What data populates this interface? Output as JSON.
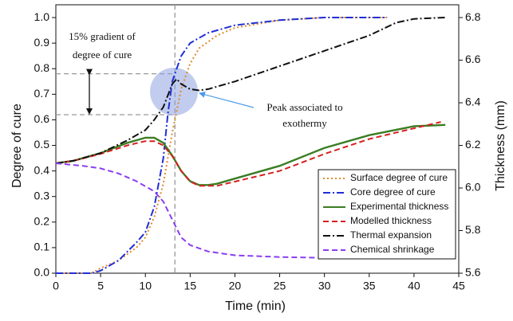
{
  "chart_data": {
    "type": "line",
    "xlabel": "Time (min)",
    "ylabel": "Degree of cure",
    "y2label": "Thickness (mm)",
    "xlim": [
      0,
      45
    ],
    "xticks": [
      0,
      5,
      10,
      15,
      20,
      25,
      30,
      35,
      40,
      45
    ],
    "ylim": [
      0,
      1.05
    ],
    "yticks": [
      {
        "value": 0,
        "label": "0.0"
      },
      0.1,
      0.2,
      0.3,
      0.4,
      0.5,
      0.6,
      0.7,
      0.8,
      0.9,
      {
        "value": 1,
        "label": "1.0"
      }
    ],
    "y2lim": [
      5.6,
      6.86
    ],
    "y2ticks": [
      5.6,
      5.8,
      {
        "value": 6,
        "label": "6.0"
      },
      6.2,
      6.4,
      6.6,
      6.8
    ],
    "legend": "lower right",
    "vline_x": 13.3,
    "hlines": [
      0.62,
      0.78
    ],
    "annotations": [
      {
        "lines": [
          "15% gradient of",
          "degree of cure"
        ]
      },
      {
        "lines": [
          "Peak associated to",
          "exothermy"
        ]
      }
    ],
    "series": [
      {
        "name": "Surface degree of cure",
        "color": "#e08a2a",
        "dash": "dot",
        "x": [
          0,
          4,
          5,
          7,
          9,
          10,
          11,
          12,
          13,
          14,
          15,
          16,
          18,
          20,
          25,
          30,
          37
        ],
        "values": [
          0,
          0,
          0.02,
          0.05,
          0.1,
          0.14,
          0.22,
          0.35,
          0.55,
          0.72,
          0.82,
          0.88,
          0.93,
          0.96,
          0.99,
          1,
          1
        ]
      },
      {
        "name": "Core degree of cure",
        "color": "#1f2fd6",
        "dash": "dashdot",
        "x": [
          0,
          4,
          5,
          7,
          9,
          10,
          11,
          12,
          12.5,
          13,
          14,
          15,
          17,
          20,
          25,
          30,
          37
        ],
        "values": [
          0,
          0,
          0.01,
          0.05,
          0.12,
          0.16,
          0.26,
          0.45,
          0.62,
          0.75,
          0.85,
          0.9,
          0.94,
          0.97,
          0.99,
          1,
          1
        ]
      },
      {
        "name": "Experimental thickness",
        "color": "#3a7d22",
        "dash": "solid",
        "axis": "y2",
        "x": [
          0,
          2,
          5,
          8,
          10,
          11,
          12,
          13,
          14,
          15,
          16,
          17,
          18,
          20,
          25,
          30,
          35,
          40,
          43.5
        ],
        "values": [
          6.116,
          6.128,
          6.164,
          6.212,
          6.236,
          6.236,
          6.212,
          6.152,
          6.08,
          6.032,
          6.014,
          6.014,
          6.02,
          6.044,
          6.104,
          6.188,
          6.248,
          6.29,
          6.296
        ]
      },
      {
        "name": "Modelled thickness",
        "color": "#d62020",
        "dash": "dash",
        "axis": "y2",
        "x": [
          0,
          2,
          5,
          8,
          10,
          11,
          12,
          13,
          14,
          15,
          16,
          17,
          18,
          20,
          25,
          30,
          35,
          40,
          43
        ],
        "values": [
          6.116,
          6.128,
          6.16,
          6.2,
          6.22,
          6.22,
          6.2,
          6.15,
          6.08,
          6.03,
          6.01,
          6.01,
          6.01,
          6.03,
          6.08,
          6.16,
          6.23,
          6.28,
          6.31
        ]
      },
      {
        "name": "Thermal expansion",
        "color": "#111111",
        "dash": "dashdot",
        "axis": "y2",
        "x": [
          0,
          2,
          5,
          8,
          10,
          11,
          12,
          13,
          13.5,
          14,
          15,
          16,
          17,
          20,
          25,
          30,
          35,
          38,
          40,
          43.5
        ],
        "values": [
          6.116,
          6.128,
          6.164,
          6.224,
          6.272,
          6.32,
          6.38,
          6.488,
          6.512,
          6.488,
          6.464,
          6.458,
          6.464,
          6.5,
          6.572,
          6.644,
          6.716,
          6.776,
          6.794,
          6.8
        ]
      },
      {
        "name": "Chemical shrinkage",
        "color": "#8a3df0",
        "dash": "dash",
        "axis": "y2",
        "x": [
          0,
          3,
          5,
          7,
          9,
          11,
          12,
          13,
          14,
          15,
          17,
          20,
          25,
          30,
          43.5
        ],
        "values": [
          6.116,
          6.104,
          6.092,
          6.068,
          6.032,
          5.984,
          5.936,
          5.852,
          5.768,
          5.732,
          5.702,
          5.684,
          5.676,
          5.672,
          5.672
        ]
      }
    ]
  }
}
